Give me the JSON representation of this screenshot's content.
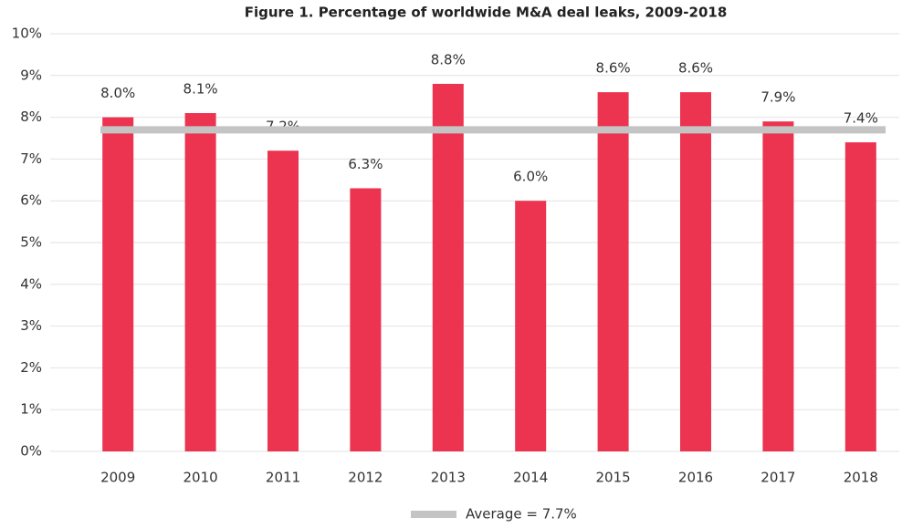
{
  "chart_data": {
    "type": "bar",
    "title": "Figure 1. Percentage of worldwide M&A deal leaks, 2009-2018",
    "categories": [
      "2009",
      "2010",
      "2011",
      "2012",
      "2013",
      "2014",
      "2015",
      "2016",
      "2017",
      "2018"
    ],
    "values": [
      8.0,
      8.1,
      7.2,
      6.3,
      8.8,
      6.0,
      8.6,
      8.6,
      7.9,
      7.4
    ],
    "value_labels": [
      "8.0%",
      "8.1%",
      "7.2%",
      "6.3%",
      "8.8%",
      "6.0%",
      "8.6%",
      "8.6%",
      "7.9%",
      "7.4%"
    ],
    "color": "#ec3350",
    "ylim": [
      0,
      10
    ],
    "yticks": [
      {
        "value": 0,
        "label": "0%"
      },
      {
        "value": 1,
        "label": "1%"
      },
      {
        "value": 2,
        "label": "2%"
      },
      {
        "value": 3,
        "label": "3%"
      },
      {
        "value": 4,
        "label": "4%"
      },
      {
        "value": 5,
        "label": "5%"
      },
      {
        "value": 6,
        "label": "6%"
      },
      {
        "value": 7,
        "label": "7%"
      },
      {
        "value": 8,
        "label": "8%"
      },
      {
        "value": 9,
        "label": "9%"
      },
      {
        "value": 10,
        "label": "10%"
      }
    ],
    "grid": true,
    "reference_line": {
      "name": "Average = 7.7%",
      "value": 7.7,
      "color": "#c4c4c4"
    }
  }
}
